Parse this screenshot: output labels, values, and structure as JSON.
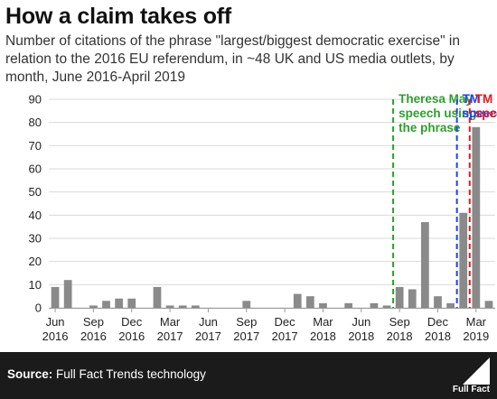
{
  "header": {
    "title": "How a claim takes off",
    "subtitle": "Number of citations of the phrase \"largest/biggest democratic exercise\" in relation to the 2016 EU referendum, in ~48 UK and US media outlets, by month, June 2016-April 2019"
  },
  "chart_data": {
    "type": "bar",
    "categories": [
      "Jun 2016",
      "Jul 2016",
      "Aug 2016",
      "Sep 2016",
      "Oct 2016",
      "Nov 2016",
      "Dec 2016",
      "Jan 2017",
      "Feb 2017",
      "Mar 2017",
      "Apr 2017",
      "May 2017",
      "Jun 2017",
      "Jul 2017",
      "Aug 2017",
      "Sep 2017",
      "Oct 2017",
      "Nov 2017",
      "Dec 2017",
      "Jan 2018",
      "Feb 2018",
      "Mar 2018",
      "Apr 2018",
      "May 2018",
      "Jun 2018",
      "Jul 2018",
      "Aug 2018",
      "Sep 2018",
      "Oct 2018",
      "Nov 2018",
      "Dec 2018",
      "Jan 2019",
      "Feb 2019",
      "Mar 2019",
      "Apr 2019"
    ],
    "values": [
      9,
      12,
      0,
      1,
      3,
      4,
      4,
      0,
      9,
      1,
      1,
      1,
      0,
      0,
      0,
      3,
      0,
      0,
      0,
      6,
      5,
      2,
      0,
      2,
      0,
      2,
      1,
      9,
      8,
      37,
      5,
      2,
      41,
      78,
      3
    ],
    "ylim": [
      0,
      90
    ],
    "yticks": [
      0,
      10,
      20,
      30,
      40,
      50,
      60,
      70,
      80,
      90
    ],
    "xtick_labels": [
      {
        "index": 0,
        "month": "Jun",
        "year": "2016"
      },
      {
        "index": 3,
        "month": "Sep",
        "year": "2016"
      },
      {
        "index": 6,
        "month": "Dec",
        "year": "2016"
      },
      {
        "index": 9,
        "month": "Mar",
        "year": "2017"
      },
      {
        "index": 12,
        "month": "Jun",
        "year": "2017"
      },
      {
        "index": 15,
        "month": "Sep",
        "year": "2017"
      },
      {
        "index": 18,
        "month": "Dec",
        "year": "2017"
      },
      {
        "index": 21,
        "month": "Mar",
        "year": "2018"
      },
      {
        "index": 24,
        "month": "Jun",
        "year": "2018"
      },
      {
        "index": 27,
        "month": "Sep",
        "year": "2018"
      },
      {
        "index": 30,
        "month": "Dec",
        "year": "2018"
      },
      {
        "index": 33,
        "month": "Mar",
        "year": "2019"
      }
    ],
    "grid": true,
    "bar_color": "#8a8a8a",
    "annotations": [
      {
        "after_index": 26,
        "lines": [
          "Theresa May",
          "speech using",
          "the phrase"
        ],
        "color": "#2ca02c"
      },
      {
        "after_index": 31,
        "lines": [
          "TM",
          "speech"
        ],
        "color": "#1f3fff"
      },
      {
        "after_index": 32,
        "lines": [
          "TM",
          "speech"
        ],
        "color": "#e31a1c"
      }
    ]
  },
  "footer": {
    "source_label": "Source:",
    "source_text": "Full Fact Trends technology",
    "logo_text": "Full Fact"
  }
}
